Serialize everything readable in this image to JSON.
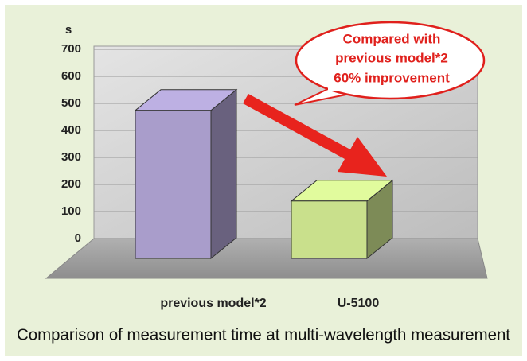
{
  "chart_data": {
    "type": "bar3d",
    "title": "Comparison of measurement time at multi-wavelength measurement",
    "y_label": "s",
    "categories": [
      "previous model*2",
      "U-5100"
    ],
    "values": [
      490,
      190
    ],
    "colors": [
      "#a99dcb",
      "#c9e08c"
    ],
    "ylim": [
      0,
      700
    ],
    "yticks": [
      0,
      100,
      200,
      300,
      400,
      500,
      600,
      700
    ],
    "grid": true,
    "annotation": [
      "Compared with",
      "previous model*2",
      "60% improvement"
    ]
  }
}
